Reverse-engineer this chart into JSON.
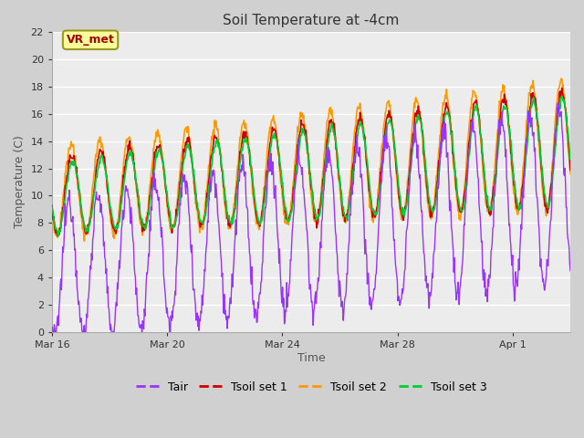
{
  "title": "Soil Temperature at -4cm",
  "xlabel": "Time",
  "ylabel": "Temperature (C)",
  "ylim": [
    0,
    22
  ],
  "yticks": [
    0,
    2,
    4,
    6,
    8,
    10,
    12,
    14,
    16,
    18,
    20,
    22
  ],
  "xtick_labels": [
    "Mar 16",
    "Mar 20",
    "Mar 24",
    "Mar 28",
    "Apr 1"
  ],
  "xtick_positions": [
    0,
    4,
    8,
    12,
    16
  ],
  "xlim": [
    0,
    18
  ],
  "n_days": 18,
  "fig_bg_color": "#d0d0d0",
  "plot_bg_color": "#ececec",
  "grid_color": "#ffffff",
  "colors": {
    "Tair": "#9933ff",
    "Tsoil1": "#cc0000",
    "Tsoil2": "#ff9900",
    "Tsoil3": "#00cc33"
  },
  "legend_labels": [
    "Tair",
    "Tsoil set 1",
    "Tsoil set 2",
    "Tsoil set 3"
  ],
  "annotation_text": "VR_met",
  "annotation_bg": "#ffff99",
  "annotation_border": "#999922",
  "annotation_color": "#aa0000"
}
